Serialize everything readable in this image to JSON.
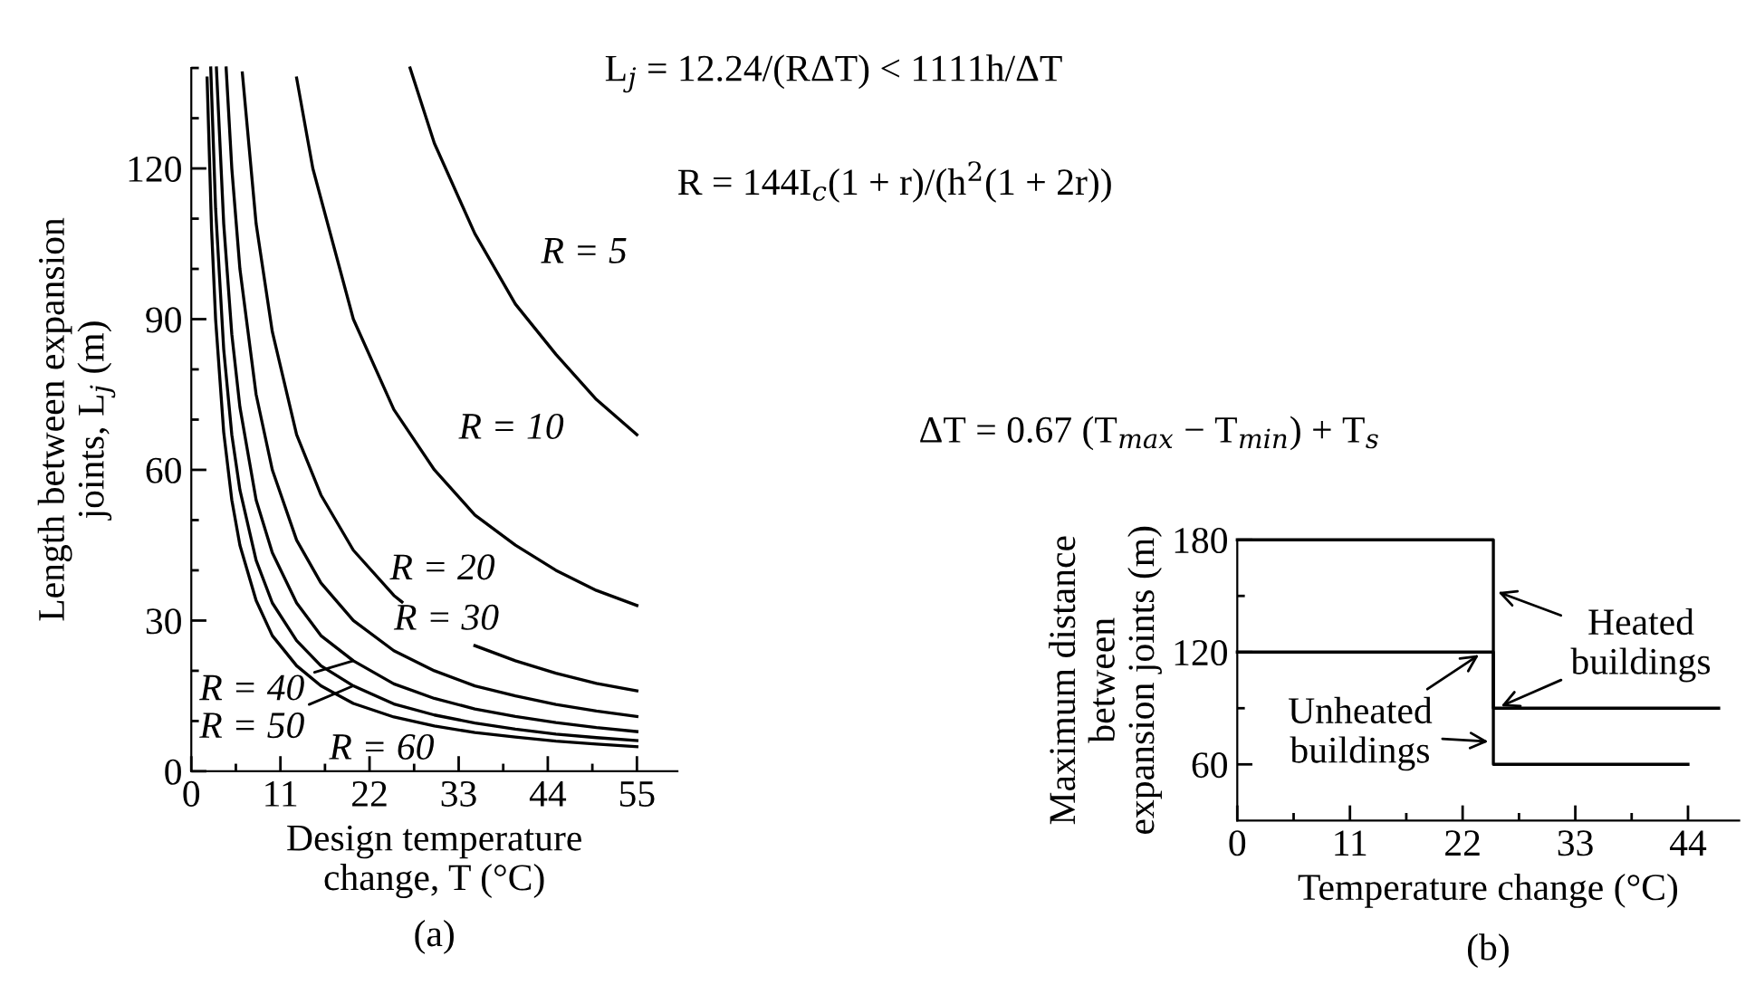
{
  "chart_data": [
    {
      "type": "line",
      "title": "(a)",
      "xlabel": "Design temperature\nchange, T (°C)",
      "ylabel": "Length between expansion\njoints, L$_{j}$ (m)",
      "xlim": [
        0,
        60
      ],
      "ylim": [
        0,
        140
      ],
      "xticks": [
        0,
        {
          "value": 5.5,
          "label": null
        },
        11,
        {
          "value": 16.5,
          "label": null
        },
        22,
        {
          "value": 27.5,
          "label": null
        },
        33,
        {
          "value": 38.5,
          "label": null
        },
        44,
        {
          "value": 49.5,
          "label": null
        },
        55
      ],
      "yticks": [
        0,
        {
          "value": 10,
          "label": null
        },
        {
          "value": 20,
          "label": null
        },
        30,
        {
          "value": 40,
          "label": null
        },
        {
          "value": 50,
          "label": null
        },
        60,
        {
          "value": 70,
          "label": null
        },
        {
          "value": 80,
          "label": null
        },
        90,
        {
          "value": 100,
          "label": null
        },
        {
          "value": 110,
          "label": null
        },
        120,
        {
          "value": 130,
          "label": null
        },
        {
          "value": 140,
          "label": null
        }
      ],
      "grid": false,
      "legend": "bottom left",
      "marker": "none",
      "line_style": "solid",
      "series": [
        {
          "name": "R = 5",
          "color": "#000000",
          "x": [
            27,
            30,
            35,
            40,
            45,
            50,
            55
          ],
          "values": [
            140,
            125,
            107,
            93,
            83,
            74,
            67
          ]
        },
        {
          "name": "R = 10",
          "color": "#000000",
          "x": [
            13,
            15,
            20,
            25,
            30,
            35,
            40,
            45,
            50,
            55
          ],
          "values": [
            138,
            120,
            90,
            72,
            60,
            51,
            45,
            40,
            36,
            33
          ]
        },
        {
          "name": "R = 20",
          "color": "#000000",
          "x": [
            6.3,
            8,
            10,
            13,
            16,
            20,
            25,
            26,
            30,
            35,
            40,
            45,
            50,
            55
          ],
          "values": [
            139,
            109,
            87.5,
            67,
            55,
            44,
            35,
            33.7,
            null,
            25,
            22,
            19.5,
            17.5,
            16
          ]
        },
        {
          "name": "R = 30",
          "color": "#000000",
          "x": [
            4.3,
            5,
            6,
            8,
            10,
            13,
            16,
            20,
            25,
            30,
            35,
            40,
            45,
            50,
            55
          ],
          "values": [
            140,
            120,
            100,
            75,
            60,
            46,
            37.5,
            30,
            24,
            20,
            17,
            15,
            13.3,
            12,
            10.9
          ]
        },
        {
          "name": "R = 40",
          "color": "#000000",
          "x": [
            3.1,
            4,
            5,
            6,
            8,
            10,
            13,
            16,
            20,
            25,
            30,
            35,
            40,
            45,
            50,
            55
          ],
          "values": [
            140,
            109,
            87,
            72.5,
            54,
            43.5,
            33.5,
            27,
            22,
            17.4,
            14.5,
            12.4,
            10.9,
            9.7,
            8.7,
            7.9
          ]
        },
        {
          "name": "R = 50",
          "color": "#000000",
          "x": [
            2.4,
            3,
            4,
            5,
            6,
            8,
            10,
            13,
            16,
            20,
            25,
            30,
            35,
            40,
            45,
            50,
            55
          ],
          "values": [
            140,
            112,
            84,
            67,
            56,
            42,
            33.5,
            26,
            21,
            17,
            13.4,
            11.2,
            9.6,
            8.4,
            7.4,
            6.7,
            6.1
          ]
        },
        {
          "name": "R = 60",
          "color": "#000000",
          "x": [
            1.95,
            2.5,
            3,
            4,
            5,
            6,
            8,
            10,
            13,
            16,
            20,
            25,
            30,
            35,
            40,
            45,
            50,
            55
          ],
          "values": [
            138,
            108,
            90,
            67.5,
            54,
            45,
            34,
            27,
            21,
            17,
            13.5,
            10.8,
            9,
            7.7,
            6.8,
            6,
            5.4,
            4.9
          ]
        }
      ],
      "annotations": [
        "L$_{j}$ = 12.24/(RΔT) < 1111h/ΔT",
        "R = 144I$_{c}$(1 + r)/(h$^{2}$(1 + 2r))",
        "ΔT = 0.67 (T$_{max}$ − T$_{min}$) + T$_{s}$"
      ]
    },
    {
      "type": "line",
      "title": "(b)",
      "xlabel": "Temperature change (°C)",
      "ylabel": "Maximum distance\nbetween\nexpansion joints (m)",
      "xlim": [
        0,
        49
      ],
      "ylim": [
        30,
        180
      ],
      "xticks": [
        0,
        {
          "value": 5.5,
          "label": null
        },
        11,
        {
          "value": 16.5,
          "label": null
        },
        22,
        {
          "value": 27.5,
          "label": null
        },
        33,
        {
          "value": 38.5,
          "label": null
        },
        44
      ],
      "yticks": [
        60,
        {
          "value": 90,
          "label": null
        },
        120,
        {
          "value": 150,
          "label": null
        },
        180
      ],
      "grid": false,
      "legend": "bottom left",
      "marker": "none",
      "line_style": "solid",
      "series": [
        {
          "name": "Heated\nbuildings",
          "color": "#000000",
          "x": [
            0,
            25,
            25,
            47
          ],
          "values": [
            180,
            180,
            90,
            90
          ]
        },
        {
          "name": "Unheated\nbuildings",
          "color": "#000000",
          "x": [
            0,
            25,
            25,
            44
          ],
          "values": [
            120,
            120,
            60,
            60
          ]
        }
      ]
    }
  ]
}
